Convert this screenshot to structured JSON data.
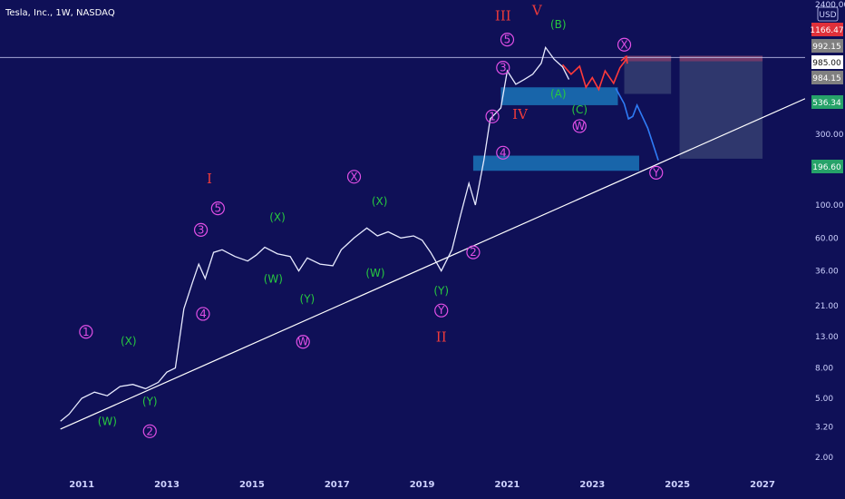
{
  "header": {
    "title": "Tesla, Inc., 1W, NASDAQ",
    "currency": "USD"
  },
  "colors": {
    "background": "#0f1057",
    "candle": "#e8ebff",
    "trendline": "#ffffff",
    "zone": "#1a74b8",
    "roman": "#ef3b3b",
    "green_labels": "#27c93f",
    "pink_labels": "#e14fe6",
    "projection_red": "#ff3a3a",
    "projection_blue": "#2f7cf6"
  },
  "chart_data": {
    "type": "line",
    "title": "Tesla, Inc., 1W, NASDAQ",
    "y_scale": "log",
    "ylim": [
      1.6,
      2400
    ],
    "xlim": [
      2010.4,
      2028.0
    ],
    "x_ticks": [
      "2011",
      "2013",
      "2015",
      "2017",
      "2019",
      "2021",
      "2023",
      "2025",
      "2027"
    ],
    "y_ticks": [
      "2400.00",
      "300.00",
      "100.00",
      "60.00",
      "36.00",
      "21.00",
      "13.00",
      "8.00",
      "5.00",
      "3.20",
      "2.00"
    ],
    "price_tags": [
      {
        "text": "1166.47",
        "value": 1166.47,
        "color": "#e0303a"
      },
      {
        "text": "992.15",
        "value": 992.15,
        "color": "#808080"
      },
      {
        "text": "985.00",
        "value": 985.0,
        "color": "#ffffff"
      },
      {
        "text": "984.15",
        "value": 984.15,
        "color": "#808080"
      },
      {
        "text": "536.34",
        "value": 536.34,
        "color": "#26a269"
      },
      {
        "text": "196.60",
        "value": 196.6,
        "color": "#26a269"
      }
    ],
    "series": [
      {
        "x": [
          2010.5,
          2010.7,
          2011.0,
          2011.3,
          2011.6,
          2011.9,
          2012.2,
          2012.5,
          2012.8,
          2013.0,
          2013.2,
          2013.4,
          2013.6,
          2013.75,
          2013.9,
          2014.1,
          2014.3,
          2014.6,
          2014.9,
          2015.1,
          2015.3,
          2015.6,
          2015.9,
          2016.1,
          2016.3,
          2016.6,
          2016.9,
          2017.1,
          2017.4,
          2017.7,
          2017.95,
          2018.2,
          2018.5,
          2018.8,
          2019.0,
          2019.2,
          2019.45,
          2019.7,
          2019.9,
          2020.1,
          2020.25,
          2020.45,
          2020.6,
          2020.85,
          2021.0,
          2021.2,
          2021.4,
          2021.6,
          2021.8,
          2021.9,
          2022.1,
          2022.3,
          2022.45
        ],
        "y": [
          3.5,
          3.9,
          5.0,
          5.5,
          5.2,
          6.0,
          6.2,
          5.8,
          6.4,
          7.5,
          8.0,
          20.0,
          30.0,
          40.0,
          32.0,
          48.0,
          50.0,
          45.0,
          42.0,
          46.0,
          52.0,
          47.0,
          45.0,
          36.0,
          44.0,
          40.0,
          39.0,
          50.0,
          60.0,
          70.0,
          62.0,
          66.0,
          60.0,
          62.0,
          58.0,
          48.0,
          36.0,
          50.0,
          85.0,
          140.0,
          100.0,
          200.0,
          380.0,
          450.0,
          800.0,
          650.0,
          700.0,
          760.0,
          900.0,
          1150.0,
          960.0,
          850.0,
          700.0
        ]
      }
    ],
    "trendline": {
      "x": [
        2010.5,
        2028.0
      ],
      "y": [
        3.1,
        520.0
      ]
    },
    "zones": [
      {
        "x": [
          2020.2,
          2024.1
        ],
        "y": [
          170.0,
          215.0
        ]
      },
      {
        "x": [
          2020.85,
          2023.6
        ],
        "y": [
          470.0,
          620.0
        ]
      }
    ],
    "boxes": [
      {
        "x": [
          2023.75,
          2024.85
        ],
        "y": [
          560.0,
          1010.0
        ]
      },
      {
        "x": [
          2025.05,
          2027.0
        ],
        "y": [
          205.0,
          1010.0
        ]
      }
    ],
    "projections": [
      {
        "x": [
          2022.3,
          2022.5,
          2022.7,
          2022.85,
          2023.0,
          2023.15,
          2023.3,
          2023.5,
          2023.65,
          2023.8
        ],
        "y": [
          880.0,
          760.0,
          860.0,
          620.0,
          720.0,
          600.0,
          800.0,
          660.0,
          840.0,
          960.0
        ]
      },
      {
        "x": [
          2023.55,
          2023.75,
          2023.85,
          2023.95,
          2024.05,
          2024.3,
          2024.55
        ],
        "y": [
          610.0,
          480.0,
          380.0,
          395.0,
          470.0,
          330.0,
          200.0
        ]
      }
    ],
    "annotations": {
      "roman": [
        {
          "text": "I",
          "x": 2014.0,
          "y": 140.0
        },
        {
          "text": "II",
          "x": 2019.45,
          "y": 12.0
        },
        {
          "text": "III",
          "x": 2020.9,
          "y": 1750.0
        },
        {
          "text": "IV",
          "x": 2021.3,
          "y": 380.0
        },
        {
          "text": "V",
          "x": 2021.7,
          "y": 1900.0
        }
      ],
      "green": [
        {
          "text": "(X)",
          "x": 2012.1,
          "y": 11.5
        },
        {
          "text": "(W)",
          "x": 2011.6,
          "y": 3.3
        },
        {
          "text": "(Y)",
          "x": 2012.6,
          "y": 4.5
        },
        {
          "text": "(X)",
          "x": 2015.6,
          "y": 78.0
        },
        {
          "text": "(W)",
          "x": 2015.5,
          "y": 30.0
        },
        {
          "text": "(Y)",
          "x": 2016.3,
          "y": 22.0
        },
        {
          "text": "(X)",
          "x": 2018.0,
          "y": 100.0
        },
        {
          "text": "(W)",
          "x": 2017.9,
          "y": 33.0
        },
        {
          "text": "(Y)",
          "x": 2019.45,
          "y": 25.0
        },
        {
          "text": "(B)",
          "x": 2022.2,
          "y": 1550.0
        },
        {
          "text": "(A)",
          "x": 2022.2,
          "y": 530.0
        },
        {
          "text": "(C)",
          "x": 2022.7,
          "y": 415.0
        }
      ],
      "pink": [
        {
          "text": "1",
          "x": 2011.1,
          "y": 14.0
        },
        {
          "text": "2",
          "x": 2012.6,
          "y": 3.0
        },
        {
          "text": "3",
          "x": 2013.8,
          "y": 68.0
        },
        {
          "text": "4",
          "x": 2013.85,
          "y": 18.5
        },
        {
          "text": "5",
          "x": 2014.2,
          "y": 95.0
        },
        {
          "text": "W",
          "x": 2016.2,
          "y": 12.0
        },
        {
          "text": "X",
          "x": 2017.4,
          "y": 155.0
        },
        {
          "text": "Y",
          "x": 2019.45,
          "y": 19.5
        },
        {
          "text": "2",
          "x": 2020.2,
          "y": 48.0
        },
        {
          "text": "1",
          "x": 2020.65,
          "y": 395.0
        },
        {
          "text": "4",
          "x": 2020.9,
          "y": 225.0
        },
        {
          "text": "3",
          "x": 2020.9,
          "y": 840.0
        },
        {
          "text": "5",
          "x": 2021.0,
          "y": 1300.0
        },
        {
          "text": "W",
          "x": 2022.7,
          "y": 340.0
        },
        {
          "text": "X",
          "x": 2023.75,
          "y": 1200.0
        },
        {
          "text": "Y",
          "x": 2024.5,
          "y": 165.0
        }
      ]
    }
  }
}
